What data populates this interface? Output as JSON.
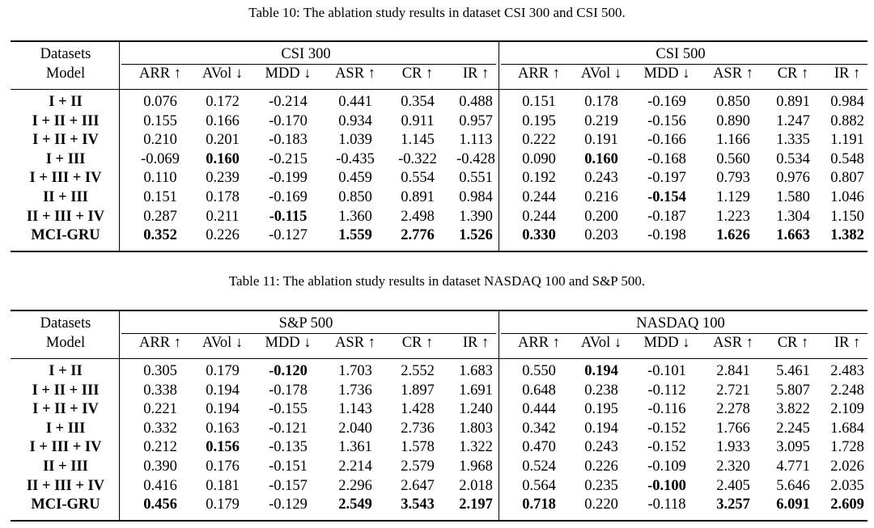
{
  "tables": [
    {
      "caption": "Table 10: The ablation study results in dataset CSI 300 and CSI 500.",
      "header_datasets": "Datasets",
      "header_model": "Model",
      "group_a": "CSI 300",
      "group_b": "CSI 500",
      "metrics": [
        "ARR ↑",
        "AVol ↓",
        "MDD ↓",
        "ASR ↑",
        "CR ↑",
        "IR ↑",
        "ARR ↑",
        "AVol ↓",
        "MDD ↓",
        "ASR ↑",
        "CR ↑",
        "IR ↑"
      ],
      "rows": [
        {
          "model": "I + II",
          "values": [
            "0.076",
            "0.172",
            "-0.214",
            "0.441",
            "0.354",
            "0.488",
            "0.151",
            "0.178",
            "-0.169",
            "0.850",
            "0.891",
            "0.984"
          ],
          "bold": []
        },
        {
          "model": "I + II + III",
          "values": [
            "0.155",
            "0.166",
            "-0.170",
            "0.934",
            "0.911",
            "0.957",
            "0.195",
            "0.219",
            "-0.156",
            "0.890",
            "1.247",
            "0.882"
          ],
          "bold": []
        },
        {
          "model": "I + II + IV",
          "values": [
            "0.210",
            "0.201",
            "-0.183",
            "1.039",
            "1.145",
            "1.113",
            "0.222",
            "0.191",
            "-0.166",
            "1.166",
            "1.335",
            "1.191"
          ],
          "bold": []
        },
        {
          "model": "I + III",
          "values": [
            "-0.069",
            "0.160",
            "-0.215",
            "-0.435",
            "-0.322",
            "-0.428",
            "0.090",
            "0.160",
            "-0.168",
            "0.560",
            "0.534",
            "0.548"
          ],
          "bold": [
            1,
            7
          ]
        },
        {
          "model": "I + III + IV",
          "values": [
            "0.110",
            "0.239",
            "-0.199",
            "0.459",
            "0.554",
            "0.551",
            "0.192",
            "0.243",
            "-0.197",
            "0.793",
            "0.976",
            "0.807"
          ],
          "bold": []
        },
        {
          "model": "II + III",
          "values": [
            "0.151",
            "0.178",
            "-0.169",
            "0.850",
            "0.891",
            "0.984",
            "0.244",
            "0.216",
            "-0.154",
            "1.129",
            "1.580",
            "1.046"
          ],
          "bold": [
            8
          ]
        },
        {
          "model": "II + III + IV",
          "values": [
            "0.287",
            "0.211",
            "-0.115",
            "1.360",
            "2.498",
            "1.390",
            "0.244",
            "0.200",
            "-0.187",
            "1.223",
            "1.304",
            "1.150"
          ],
          "bold": [
            2
          ]
        },
        {
          "model": "MCI-GRU",
          "values": [
            "0.352",
            "0.226",
            "-0.127",
            "1.559",
            "2.776",
            "1.526",
            "0.330",
            "0.203",
            "-0.198",
            "1.626",
            "1.663",
            "1.382"
          ],
          "bold": [
            0,
            3,
            4,
            5,
            6,
            9,
            10,
            11
          ]
        }
      ]
    },
    {
      "caption": "Table 11: The ablation study results in dataset NASDAQ 100 and S&P 500.",
      "header_datasets": "Datasets",
      "header_model": "Model",
      "group_a": "S&P 500",
      "group_b": "NASDAQ 100",
      "metrics": [
        "ARR ↑",
        "AVol ↓",
        "MDD ↓",
        "ASR ↑",
        "CR ↑",
        "IR ↑",
        "ARR ↑",
        "AVol ↓",
        "MDD ↓",
        "ASR ↑",
        "CR ↑",
        "IR ↑"
      ],
      "rows": [
        {
          "model": "I + II",
          "values": [
            "0.305",
            "0.179",
            "-0.120",
            "1.703",
            "2.552",
            "1.683",
            "0.550",
            "0.194",
            "-0.101",
            "2.841",
            "5.461",
            "2.483"
          ],
          "bold": [
            2,
            7
          ]
        },
        {
          "model": "I + II + III",
          "values": [
            "0.338",
            "0.194",
            "-0.178",
            "1.736",
            "1.897",
            "1.691",
            "0.648",
            "0.238",
            "-0.112",
            "2.721",
            "5.807",
            "2.248"
          ],
          "bold": []
        },
        {
          "model": "I + II + IV",
          "values": [
            "0.221",
            "0.194",
            "-0.155",
            "1.143",
            "1.428",
            "1.240",
            "0.444",
            "0.195",
            "-0.116",
            "2.278",
            "3.822",
            "2.109"
          ],
          "bold": []
        },
        {
          "model": "I + III",
          "values": [
            "0.332",
            "0.163",
            "-0.121",
            "2.040",
            "2.736",
            "1.803",
            "0.342",
            "0.194",
            "-0.152",
            "1.766",
            "2.245",
            "1.684"
          ],
          "bold": []
        },
        {
          "model": "I + III + IV",
          "values": [
            "0.212",
            "0.156",
            "-0.135",
            "1.361",
            "1.578",
            "1.322",
            "0.470",
            "0.243",
            "-0.152",
            "1.933",
            "3.095",
            "1.728"
          ],
          "bold": [
            1
          ]
        },
        {
          "model": "II + III",
          "values": [
            "0.390",
            "0.176",
            "-0.151",
            "2.214",
            "2.579",
            "1.968",
            "0.524",
            "0.226",
            "-0.109",
            "2.320",
            "4.771",
            "2.026"
          ],
          "bold": []
        },
        {
          "model": "II + III + IV",
          "values": [
            "0.416",
            "0.181",
            "-0.157",
            "2.296",
            "2.647",
            "2.018",
            "0.564",
            "0.235",
            "-0.100",
            "2.405",
            "5.646",
            "2.035"
          ],
          "bold": [
            8
          ]
        },
        {
          "model": "MCI-GRU",
          "values": [
            "0.456",
            "0.179",
            "-0.129",
            "2.549",
            "3.543",
            "2.197",
            "0.718",
            "0.220",
            "-0.118",
            "3.257",
            "6.091",
            "2.609"
          ],
          "bold": [
            0,
            3,
            4,
            5,
            6,
            9,
            10,
            11
          ]
        }
      ]
    }
  ]
}
